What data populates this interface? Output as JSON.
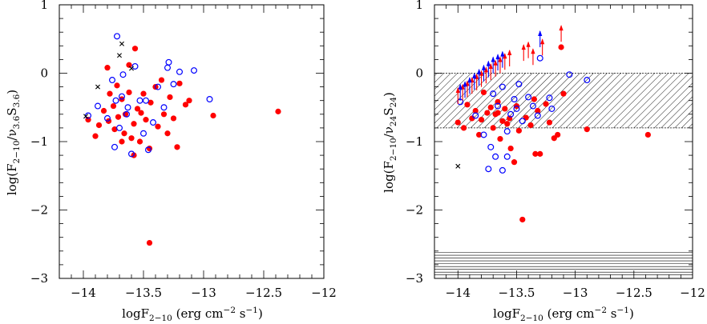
{
  "chart_data": [
    {
      "type": "scatter",
      "xlim": [
        -14.2,
        -12
      ],
      "ylim": [
        -3,
        1
      ],
      "x_ticks": [
        -14,
        -13.5,
        -13,
        -12.5,
        -12
      ],
      "x_tick_labels": [
        "−14",
        "−13.5",
        "−13",
        "−12.5",
        "−12"
      ],
      "y_ticks": [
        -3,
        -2,
        -1,
        0,
        1
      ],
      "y_tick_labels": [
        "−3",
        "−2",
        "−1",
        "0",
        "1"
      ],
      "xlabel": "logF2−10 (erg cm−2 s−1)",
      "ylabel": "log(F2−10/ν3.6S3.6)",
      "colors": {
        "filled": "#ff0000",
        "open": "#0000ff",
        "cross": "#000000"
      },
      "series": [
        {
          "marker": "filled-circle",
          "points": [
            [
              -13.9,
              -0.92
            ],
            [
              -13.87,
              -0.76
            ],
            [
              -13.83,
              -0.55
            ],
            [
              -13.79,
              -0.7
            ],
            [
              -13.75,
              -0.48
            ],
            [
              -13.74,
              -0.82
            ],
            [
              -13.72,
              -0.18
            ],
            [
              -13.71,
              -0.64
            ],
            [
              -13.68,
              -0.38
            ],
            [
              -13.66,
              -0.88
            ],
            [
              -13.65,
              -0.6
            ],
            [
              -13.62,
              -0.28
            ],
            [
              -13.6,
              -0.95
            ],
            [
              -13.58,
              -0.74
            ],
            [
              -13.55,
              -0.52
            ],
            [
              -13.53,
              -1.0
            ],
            [
              -13.5,
              -0.3
            ],
            [
              -13.48,
              -0.68
            ],
            [
              -13.45,
              -1.1
            ],
            [
              -13.44,
              -0.43
            ],
            [
              -13.4,
              -0.2
            ],
            [
              -13.38,
              -0.78
            ],
            [
              -13.35,
              -0.1
            ],
            [
              -13.33,
              -0.6
            ],
            [
              -13.3,
              -0.88
            ],
            [
              -13.28,
              -0.35
            ],
            [
              -13.25,
              -0.66
            ],
            [
              -13.22,
              -1.08
            ],
            [
              -13.2,
              -0.15
            ],
            [
              -13.15,
              -0.46
            ],
            [
              -13.12,
              -0.4
            ],
            [
              -12.92,
              -0.62
            ],
            [
              -12.38,
              -0.56
            ],
            [
              -13.45,
              -2.48
            ],
            [
              -13.96,
              -0.68
            ],
            [
              -13.8,
              0.08
            ],
            [
              -13.57,
              0.36
            ],
            [
              -13.62,
              0.12
            ],
            [
              -13.68,
              -1.0
            ],
            [
              -13.58,
              -1.2
            ],
            [
              -13.78,
              -0.3
            ],
            [
              -13.52,
              -0.58
            ]
          ]
        },
        {
          "marker": "open-circle",
          "points": [
            [
              -13.96,
              -0.62
            ],
            [
              -13.88,
              -0.48
            ],
            [
              -13.8,
              -0.66
            ],
            [
              -13.76,
              -0.1
            ],
            [
              -13.73,
              -0.4
            ],
            [
              -13.7,
              -0.8
            ],
            [
              -13.67,
              -0.02
            ],
            [
              -13.64,
              -0.6
            ],
            [
              -13.6,
              -1.18
            ],
            [
              -13.57,
              0.1
            ],
            [
              -13.53,
              -0.4
            ],
            [
              -13.5,
              -0.88
            ],
            [
              -13.46,
              -1.12
            ],
            [
              -13.42,
              -0.72
            ],
            [
              -13.38,
              -0.2
            ],
            [
              -13.33,
              -0.5
            ],
            [
              -13.3,
              0.08
            ],
            [
              -13.25,
              -0.16
            ],
            [
              -13.2,
              0.02
            ],
            [
              -13.08,
              0.04
            ],
            [
              -12.95,
              -0.38
            ],
            [
              -13.72,
              0.54
            ],
            [
              -13.74,
              -1.08
            ],
            [
              -13.68,
              -0.34
            ],
            [
              -13.63,
              -0.5
            ],
            [
              -13.48,
              -0.4
            ],
            [
              -13.29,
              0.16
            ]
          ]
        },
        {
          "marker": "cross",
          "points": [
            [
              -13.68,
              0.43
            ],
            [
              -13.7,
              0.26
            ],
            [
              -13.6,
              0.07
            ],
            [
              -13.88,
              -0.2
            ],
            [
              -13.98,
              -0.63
            ]
          ]
        }
      ]
    },
    {
      "type": "scatter",
      "xlim": [
        -14.2,
        -12
      ],
      "ylim": [
        -3,
        1
      ],
      "x_ticks": [
        -14,
        -13.5,
        -13,
        -12.5,
        -12
      ],
      "x_tick_labels": [
        "−14",
        "−13.5",
        "−13",
        "−12.5",
        "−12"
      ],
      "y_ticks": [
        -3,
        -2,
        -1,
        0,
        1
      ],
      "y_tick_labels": [
        "−3",
        "−2",
        "−1",
        "0",
        "1"
      ],
      "xlabel": "logF2−10 (erg cm−2 s−1)",
      "ylabel": "log(F2−10/ν24S24)",
      "colors": {
        "filled": "#ff0000",
        "open": "#0000ff",
        "cross": "#000000"
      },
      "bands": [
        {
          "style": "diagonal-hatch",
          "y_range": [
            -0.8,
            0.0
          ]
        },
        {
          "style": "horizontal-lines",
          "y_range": [
            -2.95,
            -2.62
          ]
        }
      ],
      "series": [
        {
          "marker": "filled-circle",
          "points": [
            [
              -14.0,
              -0.72
            ],
            [
              -13.95,
              -0.8
            ],
            [
              -13.92,
              -0.46
            ],
            [
              -13.88,
              -0.66
            ],
            [
              -13.85,
              -0.55
            ],
            [
              -13.82,
              -0.9
            ],
            [
              -13.8,
              -0.68
            ],
            [
              -13.78,
              -0.28
            ],
            [
              -13.75,
              -0.58
            ],
            [
              -13.72,
              -0.5
            ],
            [
              -13.7,
              -0.8
            ],
            [
              -13.68,
              -0.6
            ],
            [
              -13.66,
              -0.42
            ],
            [
              -13.64,
              -0.96
            ],
            [
              -13.62,
              -0.7
            ],
            [
              -13.6,
              -0.52
            ],
            [
              -13.58,
              -0.74
            ],
            [
              -13.55,
              -1.1
            ],
            [
              -13.52,
              -1.3
            ],
            [
              -13.5,
              -0.48
            ],
            [
              -13.48,
              -0.84
            ],
            [
              -13.45,
              -2.14
            ],
            [
              -13.42,
              -0.65
            ],
            [
              -13.38,
              -0.76
            ],
            [
              -13.35,
              -0.38
            ],
            [
              -13.32,
              -0.55
            ],
            [
              -13.3,
              -1.18
            ],
            [
              -13.25,
              -0.45
            ],
            [
              -13.22,
              -0.72
            ],
            [
              -13.18,
              -0.95
            ],
            [
              -13.15,
              -0.9
            ],
            [
              -13.12,
              0.38
            ],
            [
              -13.1,
              -0.3
            ],
            [
              -12.9,
              -0.82
            ],
            [
              -12.38,
              -0.9
            ],
            [
              -13.34,
              -1.18
            ],
            [
              -13.56,
              -0.66
            ],
            [
              -13.66,
              -0.58
            ]
          ]
        },
        {
          "marker": "open-circle",
          "points": [
            [
              -13.98,
              -0.42
            ],
            [
              -13.85,
              -0.62
            ],
            [
              -13.78,
              -0.9
            ],
            [
              -13.74,
              -1.4
            ],
            [
              -13.7,
              -0.3
            ],
            [
              -13.66,
              -0.48
            ],
            [
              -13.62,
              -0.2
            ],
            [
              -13.58,
              -0.85
            ],
            [
              -13.55,
              -0.6
            ],
            [
              -13.52,
              -0.38
            ],
            [
              -13.48,
              -0.16
            ],
            [
              -13.45,
              -0.7
            ],
            [
              -13.4,
              -0.35
            ],
            [
              -13.36,
              -0.48
            ],
            [
              -13.32,
              -0.62
            ],
            [
              -13.3,
              0.22
            ],
            [
              -13.22,
              -0.36
            ],
            [
              -13.2,
              -0.52
            ],
            [
              -13.05,
              -0.02
            ],
            [
              -12.9,
              -0.1
            ],
            [
              -13.72,
              -1.08
            ],
            [
              -13.68,
              -1.22
            ],
            [
              -13.58,
              -1.22
            ],
            [
              -13.62,
              -1.42
            ],
            [
              -13.5,
              -0.52
            ]
          ]
        },
        {
          "marker": "cross",
          "points": [
            [
              -14.0,
              -1.36
            ]
          ]
        },
        {
          "marker": "lower-limit-arrow",
          "color": "#ff0000",
          "points": [
            [
              -14.0,
              -0.45
            ],
            [
              -13.96,
              -0.4
            ],
            [
              -13.92,
              -0.35
            ],
            [
              -13.88,
              -0.3
            ],
            [
              -13.84,
              -0.25
            ],
            [
              -13.8,
              -0.2
            ],
            [
              -13.76,
              -0.15
            ],
            [
              -13.72,
              -0.1
            ],
            [
              -13.68,
              -0.05
            ],
            [
              -13.64,
              0.0
            ],
            [
              -13.6,
              0.05
            ],
            [
              -13.56,
              0.1
            ],
            [
              -13.44,
              0.18
            ],
            [
              -13.4,
              0.22
            ],
            [
              -13.36,
              0.12
            ],
            [
              -13.28,
              0.26
            ],
            [
              -13.12,
              0.46
            ]
          ]
        },
        {
          "marker": "lower-limit-arrow",
          "color": "#0000ff",
          "points": [
            [
              -13.98,
              -0.4
            ],
            [
              -13.94,
              -0.36
            ],
            [
              -13.9,
              -0.3
            ],
            [
              -13.86,
              -0.24
            ],
            [
              -13.82,
              -0.18
            ],
            [
              -13.78,
              -0.12
            ],
            [
              -13.74,
              -0.06
            ],
            [
              -13.7,
              0.0
            ],
            [
              -13.66,
              0.04
            ],
            [
              -13.62,
              0.08
            ],
            [
              -13.3,
              0.38
            ]
          ]
        }
      ]
    }
  ]
}
